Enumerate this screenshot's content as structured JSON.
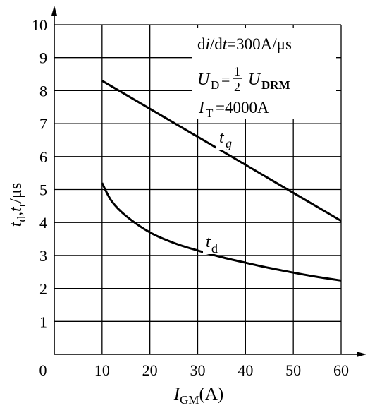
{
  "chart_data": {
    "type": "line",
    "xlabel": {
      "main": "I",
      "sub": "GM",
      "unit": "(A)"
    },
    "ylabel": {
      "t1": "t",
      "s1": "d",
      "comma": ",",
      "t2": "t",
      "s2": "r",
      "unit": "/μs"
    },
    "xlim": [
      0,
      60
    ],
    "ylim": [
      0,
      10
    ],
    "x_ticks": [
      0,
      10,
      20,
      30,
      40,
      50,
      60
    ],
    "y_ticks": [
      1,
      2,
      3,
      4,
      5,
      6,
      7,
      8,
      9,
      10
    ],
    "grid": true,
    "annotations": {
      "line1": {
        "d": "d",
        "i": "i",
        "slash": "/d",
        "t": "t",
        "rest": "=300A/μs"
      },
      "line2": {
        "U": "U",
        "subD": "D",
        "eq": "=",
        "num": "1",
        "den": "2",
        "U2": "U",
        "subDRM": "DRM"
      },
      "line3": {
        "I": "I",
        "subT": "T",
        "rest": "=4000A"
      }
    },
    "series": [
      {
        "name": {
          "t": "t",
          "sub": "g"
        },
        "x": [
          10,
          60
        ],
        "y": [
          8.3,
          4.05
        ]
      },
      {
        "name": {
          "t": "t",
          "sub": "d"
        },
        "x": [
          10,
          12,
          15,
          20,
          25,
          30,
          35,
          40,
          45,
          50,
          55,
          60
        ],
        "y": [
          5.2,
          4.65,
          4.2,
          3.7,
          3.38,
          3.15,
          2.95,
          2.78,
          2.62,
          2.48,
          2.35,
          2.24
        ]
      }
    ]
  }
}
